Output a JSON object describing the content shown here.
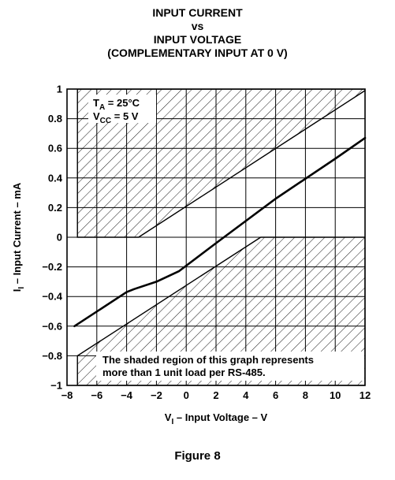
{
  "title": {
    "line1": "INPUT CURRENT",
    "line2": "vs",
    "line3": "INPUT VOLTAGE",
    "line4": "(COMPLEMENTARY INPUT AT 0 V)"
  },
  "figure_caption": "Figure 8",
  "conditions": {
    "ta_symbol": "T",
    "ta_sub": "A",
    "ta_value": " = 25°C",
    "vcc_symbol": "V",
    "vcc_sub": "CC",
    "vcc_value": " = 5 V"
  },
  "note": {
    "line1": "The shaded region of this graph represents",
    "line2": "more than 1 unit load per RS-485."
  },
  "colors": {
    "line": "#000000",
    "background": "#ffffff"
  },
  "chart_data": {
    "type": "line",
    "title": "INPUT CURRENT vs INPUT VOLTAGE (COMPLEMENTARY INPUT AT 0 V)",
    "xlabel_main": "V",
    "xlabel_sub": "I",
    "xlabel_rest": " – Input Voltage – V",
    "ylabel_main": "I",
    "ylabel_sub": "I",
    "ylabel_rest": " – Input Current – mA",
    "xlim": [
      -8,
      12
    ],
    "ylim": [
      -1,
      1
    ],
    "xticks": [
      -8,
      -6,
      -4,
      -2,
      0,
      2,
      4,
      6,
      8,
      10,
      12
    ],
    "xtick_labels": [
      "−8",
      "−6",
      "−4",
      "−2",
      "0",
      "2",
      "4",
      "6",
      "8",
      "10",
      "12"
    ],
    "yticks": [
      -1,
      -0.8,
      -0.6,
      -0.4,
      -0.2,
      0,
      0.2,
      0.4,
      0.6,
      0.8,
      1
    ],
    "ytick_labels": [
      "−1",
      "−0.8",
      "−0.6",
      "−0.4",
      "−0.2",
      "0",
      "0.2",
      "0.4",
      "0.6",
      "0.8",
      "1"
    ],
    "grid": true,
    "series": [
      {
        "x": [
          -7.5,
          -4,
          -3.5,
          -2,
          -0.5,
          2,
          6,
          10,
          12
        ],
        "y": [
          -0.6,
          -0.37,
          -0.35,
          -0.3,
          -0.23,
          -0.04,
          0.26,
          0.53,
          0.67
        ]
      }
    ],
    "shaded_regions": [
      {
        "x": [
          -7.3,
          -7.3,
          12,
          12,
          -3.2,
          -7.3
        ],
        "y": [
          0,
          1,
          1,
          0.99,
          0,
          0
        ]
      },
      {
        "x": [
          -7.3,
          -7.3,
          12,
          12,
          5,
          -7.3
        ],
        "y": [
          -0.8,
          -1,
          -1,
          0,
          0,
          -0.8
        ]
      }
    ]
  }
}
